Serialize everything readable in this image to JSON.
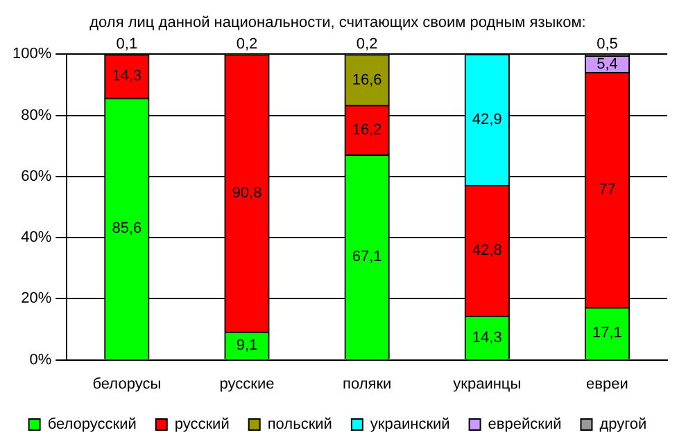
{
  "chart_data": {
    "type": "bar",
    "stacked": true,
    "title": "доля лиц данной национальности, считающих своим родным языком:",
    "categories": [
      "белорусы",
      "русские",
      "поляки",
      "украинцы",
      "евреи"
    ],
    "series": [
      {
        "name": "белорусский",
        "color": "#00ff00",
        "values": [
          85.6,
          9.1,
          67.1,
          14.3,
          17.1
        ],
        "value_labels": [
          "85,6",
          "9,1",
          "67,1",
          "14,3",
          "17,1"
        ]
      },
      {
        "name": "русский",
        "color": "#ff0000",
        "values": [
          14.3,
          90.8,
          16.2,
          42.8,
          77
        ],
        "value_labels": [
          "14,3",
          "90,8",
          "16,2",
          "42,8",
          "77"
        ]
      },
      {
        "name": "польский",
        "color": "#999900",
        "values": [
          0.1,
          0.2,
          16.6,
          null,
          null
        ],
        "value_labels": [
          "0,1",
          "0,2",
          "16,6",
          null,
          null
        ]
      },
      {
        "name": "украинский",
        "color": "#00ffff",
        "values": [
          null,
          null,
          null,
          42.9,
          null
        ],
        "value_labels": [
          null,
          null,
          null,
          "42,9",
          null
        ]
      },
      {
        "name": "еврейский",
        "color": "#cc99ff",
        "values": [
          null,
          null,
          null,
          null,
          5.4
        ],
        "value_labels": [
          null,
          null,
          null,
          null,
          "5,4"
        ]
      },
      {
        "name": "другой",
        "color": "#999999",
        "values": [
          null,
          null,
          0.2,
          null,
          0.5
        ],
        "value_labels": [
          null,
          null,
          "0,2",
          null,
          "0,5"
        ]
      }
    ],
    "ylim": [
      0,
      100
    ],
    "yticks": [
      {
        "value": 0,
        "label": "0%"
      },
      {
        "value": 20,
        "label": "20%"
      },
      {
        "value": 40,
        "label": "40%"
      },
      {
        "value": 60,
        "label": "60%"
      },
      {
        "value": 80,
        "label": "80%"
      },
      {
        "value": 100,
        "label": "100%"
      }
    ],
    "grid": "y",
    "legend": "bottom"
  }
}
